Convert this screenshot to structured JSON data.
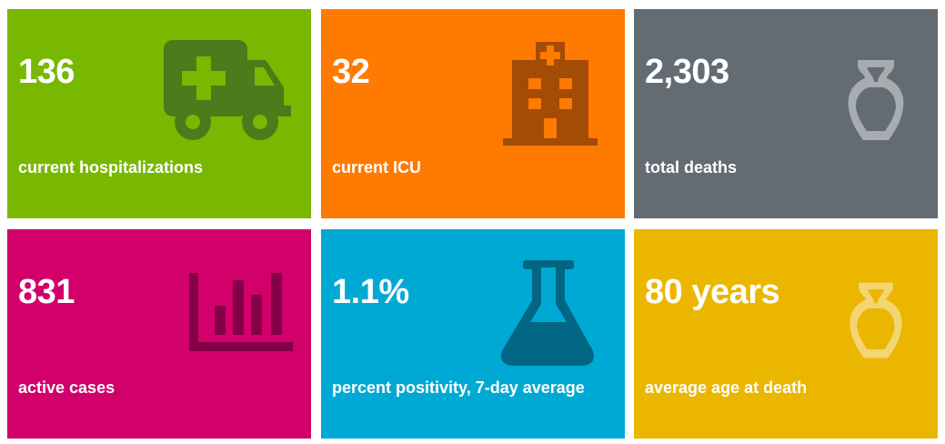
{
  "tiles": [
    {
      "value": "136",
      "label": "current hospitalizations",
      "icon": "ambulance-icon",
      "color": "#78b800",
      "icon_color": "#4d7a1a"
    },
    {
      "value": "32",
      "label": "current ICU",
      "icon": "hospital-icon",
      "color": "#ff7a00",
      "icon_color": "#a34c06"
    },
    {
      "value": "2,303",
      "label": "total deaths",
      "icon": "urn-icon",
      "color": "#636b73",
      "icon_color": "#a7acb1"
    },
    {
      "value": "831",
      "label": "active cases",
      "icon": "bar-chart-icon",
      "color": "#d2006b",
      "icon_color": "#840047"
    },
    {
      "value": "1.1%",
      "label": "percent positivity, 7-day average",
      "icon": "flask-icon",
      "color": "#00a9d4",
      "icon_color": "#006683"
    },
    {
      "value": "80 years",
      "label": "average age at death",
      "icon": "urn-icon",
      "color": "#ebb600",
      "icon_color": "#f3d572"
    }
  ]
}
